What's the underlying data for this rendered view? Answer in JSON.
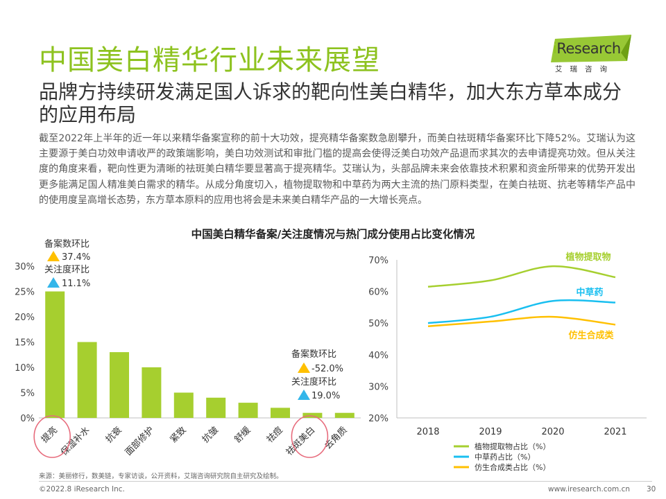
{
  "header": {
    "title": "中国美白精华行业未来展望",
    "subtitle": "品牌方持续研发满足国人诉求的靶向性美白精华，加大东方草本成分的应用布局",
    "body": "截至2022年上半年的近一年以来精华备案宣称的前十大功效，提亮精华备案数急剧攀升，而美白祛斑精华备案环比下降52%。艾瑞认为这主要源于美白功效申请收严的政策端影响，美白功效测试和审批门槛的提高会使得泛美白功效产品退而求其次的去申请提亮功效。但从关注度的角度来看，靶向性更为清晰的祛斑美白精华要显著高于提亮精华。艾瑞认为，头部品牌未来会依靠技术积累和资金所带来的优势开发出更多能满足国人精准美白需求的精华。从成分角度切入，植物提取物和中草药为两大主流的热门原料类型，在美白祛斑、抗老等精华产品中的使用度呈高增长态势，东方草本原料的应用也将会是未来美白精华产品的一大增长亮点。",
    "chart_title": "中国美白精华备案/关注度情况与热门成分使用占比变化情况"
  },
  "logo": {
    "name_i": "i",
    "name_rest": "Research",
    "sub": "艾瑞咨询"
  },
  "colors": {
    "brand": "#8dc21f",
    "bar": "#a6cf2f",
    "herbal": "#19bff0",
    "synthetic": "#ffc000",
    "plant": "#a6cf2f",
    "up_triangle": "#ffc000",
    "up_triangle_alt": "#33b6ea",
    "circle": "#e76b7c"
  },
  "chart_data": [
    {
      "type": "bar",
      "categories": [
        "提亮",
        "保湿补水",
        "抗衰",
        "面部修护",
        "紧致",
        "抗皱",
        "舒缓",
        "祛痘",
        "祛斑美白",
        "去角质"
      ],
      "values": [
        25,
        15,
        13,
        10,
        5,
        4,
        3,
        2,
        1,
        1
      ],
      "ylim": [
        0,
        30
      ],
      "yticks": [
        "30%",
        "25%",
        "20%",
        "15%",
        "10%",
        "5%",
        "0%"
      ],
      "highlighted": [
        "提亮",
        "祛斑美白"
      ],
      "annotations": [
        {
          "category": "提亮",
          "filing_label": "备案数环比",
          "filing_value": "37.4%",
          "attention_label": "关注度环比",
          "attention_value": "11.1%"
        },
        {
          "category": "祛斑美白",
          "filing_label": "备案数环比",
          "filing_value": "-52.0%",
          "attention_label": "关注度环比",
          "attention_value": "19.0%"
        }
      ]
    },
    {
      "type": "line",
      "x": [
        "2018",
        "2019",
        "2020",
        "2021"
      ],
      "ylim": [
        20,
        70
      ],
      "yticks": [
        "70%",
        "60%",
        "50%",
        "40%",
        "30%",
        "20%"
      ],
      "series": [
        {
          "name": "植物提取物占比（%）",
          "label": "植物提取物",
          "color": "#a6cf2f",
          "values": [
            61.5,
            63.5,
            68,
            64.5
          ]
        },
        {
          "name": "中草药占比（%）",
          "label": "中草药",
          "color": "#19bff0",
          "values": [
            50,
            52,
            57,
            56.5
          ]
        },
        {
          "name": "仿生合成类占比（%）",
          "label": "仿生合成类",
          "color": "#ffc000",
          "values": [
            49,
            50.5,
            52,
            49.5
          ]
        }
      ]
    }
  ],
  "footer": {
    "source": "来源：美丽修行，数美链，专家访谈，公开资料，艾瑞咨询研究院自主研究及绘制。",
    "copyright": "©2022.8 iResearch Inc.",
    "site": "www.iresearch.com.cn",
    "page": "30"
  }
}
